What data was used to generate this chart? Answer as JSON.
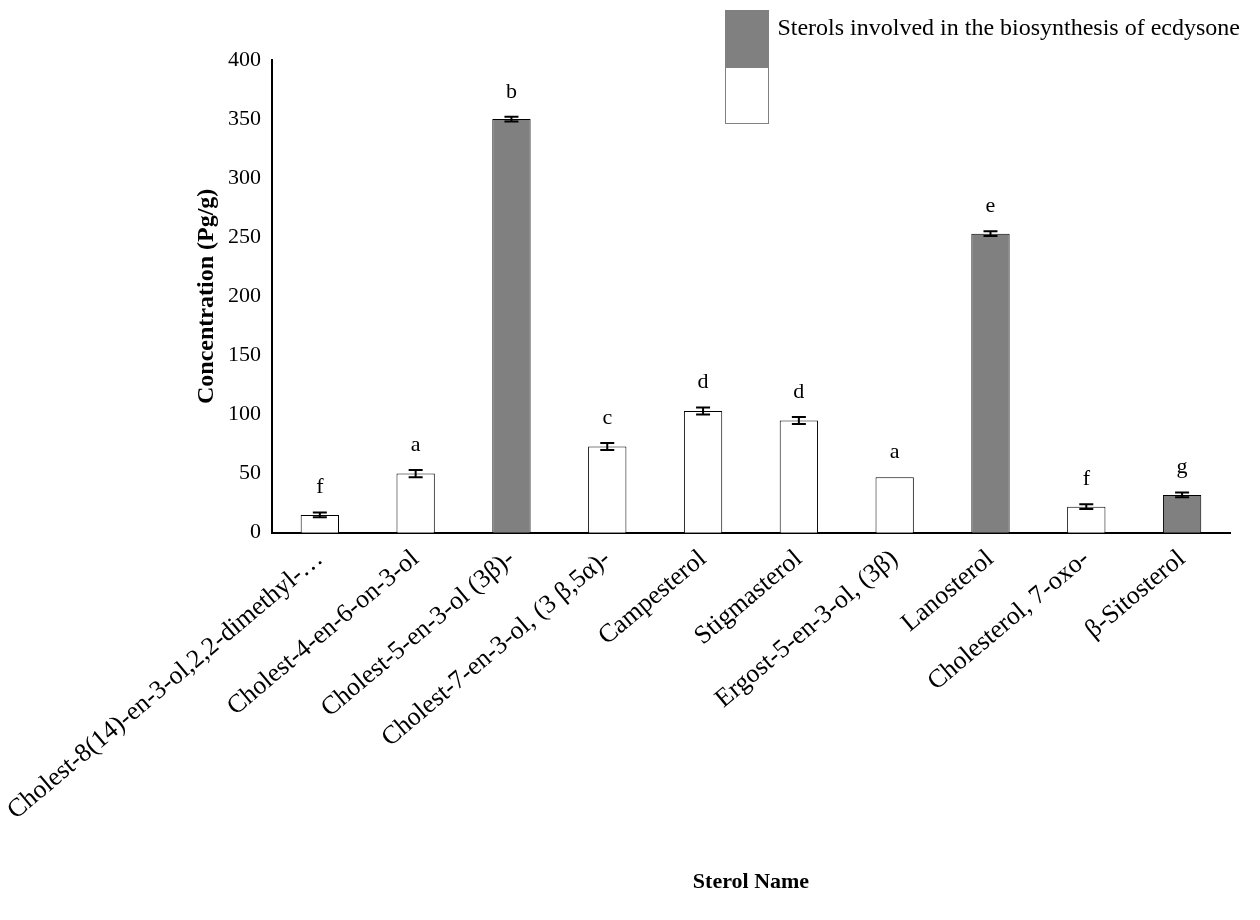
{
  "chart_data": {
    "type": "bar",
    "xlabel": "Sterol Name",
    "ylabel": "Concentration (Pg/g)",
    "categories": [
      "Cholest-8(14)-en-3-ol,2,2-dimethyl-…",
      "Cholest-4-en-6-on-3-ol",
      "Cholest-5-en-3-ol (3β)-",
      "Cholest-7-en-3-ol, (3 β,5α)-",
      "Campesterol",
      "Stigmasterol",
      "Ergost-5-en-3-ol, (3β)",
      "Lanosterol",
      "Cholesterol, 7-oxo-",
      "β-Sitosterol"
    ],
    "stacked": true,
    "series": [
      {
        "name": "Sterols involved in the biosynthesis of ecdysone",
        "color": "#808080",
        "values": [
          null,
          null,
          350,
          null,
          null,
          null,
          null,
          253,
          null,
          32
        ],
        "errors": [
          null,
          null,
          2,
          null,
          null,
          null,
          null,
          2,
          null,
          2
        ],
        "value_labels": [
          null,
          null,
          "b",
          null,
          null,
          null,
          null,
          "e",
          null,
          "g"
        ]
      },
      {
        "color": "#ffffff",
        "values": [
          15,
          50,
          null,
          73,
          103,
          95,
          47,
          null,
          22,
          null
        ],
        "errors": [
          2,
          3,
          null,
          3,
          3,
          3,
          null,
          null,
          2,
          null
        ],
        "value_labels": [
          "f",
          "a",
          null,
          "c",
          "d",
          "d",
          "a",
          null,
          "f",
          null
        ]
      }
    ],
    "ylim": [
      0,
      400
    ],
    "yticks": [
      0,
      50,
      100,
      150,
      200,
      250,
      300,
      350,
      400
    ],
    "grid": false,
    "legend": "top right"
  }
}
